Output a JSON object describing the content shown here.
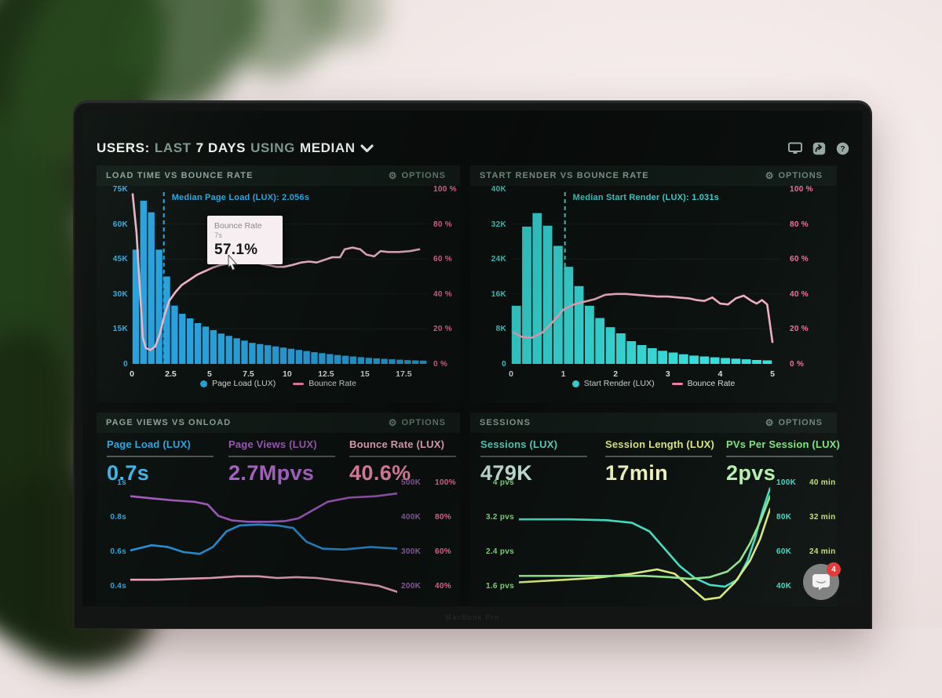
{
  "labels": {
    "options": "OPTIONS"
  },
  "header": {
    "parts": [
      {
        "text": "USERS:"
      },
      {
        "text": "LAST"
      },
      {
        "text": "7 DAYS"
      },
      {
        "text": "USING"
      },
      {
        "text": "MEDIAN"
      }
    ],
    "icons": [
      "display-icon",
      "share-icon",
      "help-icon"
    ]
  },
  "tooltip": {
    "metric": "Bounce Rate",
    "x": "7s",
    "value": "57.1%"
  },
  "chat": {
    "badge": "4"
  },
  "bezel": {
    "text": "MacBook Pro"
  },
  "chart_data": [
    {
      "id": "load-time-vs-bounce",
      "type": "bar+line",
      "title": "LOAD TIME VS BOUNCE RATE",
      "xlabel_unit": "seconds",
      "x_ticks": [
        0,
        2.5,
        5,
        7.5,
        10,
        12.5,
        15,
        17.5
      ],
      "x_max": 19.1,
      "bar_step": 0.5,
      "bar_color": "#28a2dc",
      "left_axis": {
        "labels": [
          "75K",
          "60K",
          "45K",
          "30K",
          "15K",
          "0"
        ],
        "max": 75,
        "color": "#3aabdf"
      },
      "right_axis": {
        "labels": [
          "100 %",
          "80 %",
          "60 %",
          "40 %",
          "20 %",
          "0 %"
        ],
        "max": 100,
        "color": "#f2719a"
      },
      "bars": [
        49,
        70,
        65,
        49,
        37.5,
        25,
        21.5,
        19.5,
        17.5,
        16,
        14.5,
        13,
        12,
        11,
        10,
        9,
        8.5,
        8,
        7.5,
        7,
        6.5,
        6,
        5.5,
        5,
        4.6,
        4.2,
        3.8,
        3.5,
        3.2,
        2.9,
        2.6,
        2.4,
        2.2,
        2,
        1.8,
        1.6,
        1.5,
        1.4
      ],
      "bars_unit": "K",
      "line": {
        "name": "Bounce Rate",
        "color": "#eeb4c4",
        "points": [
          [
            0.05,
            97
          ],
          [
            0.3,
            75
          ],
          [
            0.5,
            45
          ],
          [
            0.7,
            15
          ],
          [
            0.9,
            9
          ],
          [
            1.2,
            8
          ],
          [
            1.5,
            10
          ],
          [
            1.8,
            17
          ],
          [
            2.1,
            28
          ],
          [
            2.4,
            36
          ],
          [
            2.8,
            41
          ],
          [
            3.2,
            45
          ],
          [
            3.7,
            48
          ],
          [
            4.2,
            51
          ],
          [
            4.7,
            53
          ],
          [
            5.2,
            55
          ],
          [
            5.7,
            56.5
          ],
          [
            6.3,
            57.5
          ],
          [
            7,
            58
          ],
          [
            7.6,
            58
          ],
          [
            8.2,
            57.5
          ],
          [
            8.8,
            56.5
          ],
          [
            9.3,
            55.5
          ],
          [
            9.8,
            55.5
          ],
          [
            10.3,
            56.5
          ],
          [
            10.9,
            58
          ],
          [
            11.4,
            58.5
          ],
          [
            11.9,
            58
          ],
          [
            12.4,
            59.5
          ],
          [
            12.9,
            61
          ],
          [
            13.4,
            61
          ],
          [
            13.7,
            65.5
          ],
          [
            14.2,
            66.5
          ],
          [
            14.7,
            65.5
          ],
          [
            15.1,
            62.5
          ],
          [
            15.6,
            61.5
          ],
          [
            16,
            64.5
          ],
          [
            16.5,
            64
          ],
          [
            17.2,
            64
          ],
          [
            17.9,
            64.5
          ],
          [
            18.5,
            65.5
          ]
        ]
      },
      "annotation": {
        "text": "Median Page Load (LUX): 2.056s",
        "x": 2.056,
        "color": "#2fa6de"
      },
      "legend": [
        {
          "label": "Page Load (LUX)",
          "color": "#28a2dc",
          "marker": "dot"
        },
        {
          "label": "Bounce Rate",
          "color": "#f0809f",
          "marker": "line"
        }
      ]
    },
    {
      "id": "start-render-vs-bounce",
      "type": "bar+line",
      "title": "START RENDER VS BOUNCE RATE",
      "xlabel_unit": "seconds",
      "x_ticks": [
        0,
        1,
        2,
        3,
        4,
        5
      ],
      "x_max": 5.15,
      "bar_step": 0.2,
      "bar_color": "#38dedb",
      "left_axis": {
        "labels": [
          "40K",
          "32K",
          "24K",
          "16K",
          "8K",
          "0"
        ],
        "max": 40,
        "color": "#49ddd4"
      },
      "right_axis": {
        "labels": [
          "100 %",
          "80 %",
          "60 %",
          "40 %",
          "20 %",
          "0 %"
        ],
        "max": 100,
        "color": "#f2719a"
      },
      "bars": [
        13.3,
        31.4,
        34.5,
        31.6,
        27,
        22.2,
        17.8,
        13.3,
        10.5,
        8.4,
        7,
        5.2,
        4.3,
        3.6,
        3,
        2.6,
        2.2,
        1.9,
        1.7,
        1.5,
        1.35,
        1.2,
        1.05,
        0.9,
        0.8
      ],
      "bars_unit": "K",
      "line": {
        "name": "Bounce Rate",
        "color": "#f0aebf",
        "points": [
          [
            0.05,
            18
          ],
          [
            0.2,
            15.5
          ],
          [
            0.4,
            15
          ],
          [
            0.6,
            18
          ],
          [
            0.8,
            24
          ],
          [
            1,
            31
          ],
          [
            1.2,
            34
          ],
          [
            1.4,
            35.5
          ],
          [
            1.6,
            37
          ],
          [
            1.8,
            39.5
          ],
          [
            2,
            40
          ],
          [
            2.2,
            40
          ],
          [
            2.4,
            39.5
          ],
          [
            2.6,
            39
          ],
          [
            2.8,
            38.5
          ],
          [
            3,
            38.5
          ],
          [
            3.2,
            38
          ],
          [
            3.4,
            37.5
          ],
          [
            3.55,
            36.5
          ],
          [
            3.7,
            36
          ],
          [
            3.85,
            38
          ],
          [
            4,
            34.5
          ],
          [
            4.15,
            34
          ],
          [
            4.3,
            37.5
          ],
          [
            4.45,
            39
          ],
          [
            4.6,
            36
          ],
          [
            4.7,
            34.5
          ],
          [
            4.8,
            36.5
          ],
          [
            4.9,
            34
          ],
          [
            5,
            12.5
          ]
        ]
      },
      "annotation": {
        "text": "Median Start Render (LUX): 1.031s",
        "x": 1.031,
        "color": "#43d5d0"
      },
      "legend": [
        {
          "label": "Start Render (LUX)",
          "color": "#38dedb",
          "marker": "dot"
        },
        {
          "label": "Bounce Rate",
          "color": "#f0809f",
          "marker": "line"
        }
      ]
    },
    {
      "id": "page-views-vs-onload",
      "type": "multi-line",
      "title": "PAGE VIEWS VS ONLOAD",
      "metrics": [
        {
          "label": "Page Load (LUX)",
          "value": "0.7s",
          "label_color": "#2da9e1",
          "value_color": "#3fb7ea"
        },
        {
          "label": "Page Views (LUX)",
          "value": "2.7Mpvs",
          "label_color": "#a55fc0",
          "value_color": "#b46bd1"
        },
        {
          "label": "Bounce Rate (LUX)",
          "value": "40.6%",
          "label_color": "#f9b7cb",
          "value_color": "#fb90b6"
        }
      ],
      "left_axis": {
        "labels": [
          "1s",
          "0.8s",
          "0.6s",
          "0.4s"
        ],
        "color": "#2da9e1"
      },
      "right_axis": {
        "pairs": [
          [
            "500K",
            "100%"
          ],
          [
            "400K",
            "80%"
          ],
          [
            "300K",
            "60%"
          ],
          [
            "200K",
            "40%"
          ]
        ],
        "colors": [
          "#9c64b4",
          "#f2719a"
        ]
      },
      "series": [
        {
          "name": "Page Load",
          "color": "#2b93d8",
          "domain": [
            1,
            0.4
          ],
          "points": [
            [
              0,
              0.61
            ],
            [
              8,
              0.64
            ],
            [
              14,
              0.63
            ],
            [
              20,
              0.6
            ],
            [
              26,
              0.59
            ],
            [
              31,
              0.63
            ],
            [
              36,
              0.72
            ],
            [
              41,
              0.755
            ],
            [
              48,
              0.76
            ],
            [
              55,
              0.755
            ],
            [
              61,
              0.74
            ],
            [
              66,
              0.66
            ],
            [
              72,
              0.62
            ],
            [
              80,
              0.615
            ],
            [
              90,
              0.63
            ],
            [
              100,
              0.62
            ]
          ]
        },
        {
          "name": "Page Views",
          "color": "#a55ec2",
          "domain": [
            500,
            200
          ],
          "points": [
            [
              0,
              462
            ],
            [
              8,
              456
            ],
            [
              16,
              450
            ],
            [
              24,
              446
            ],
            [
              29,
              438
            ],
            [
              33,
              405
            ],
            [
              38,
              392
            ],
            [
              44,
              388
            ],
            [
              52,
              388
            ],
            [
              58,
              390
            ],
            [
              63,
              398
            ],
            [
              68,
              420
            ],
            [
              74,
              446
            ],
            [
              82,
              458
            ],
            [
              92,
              462
            ],
            [
              100,
              470
            ]
          ]
        },
        {
          "name": "Bounce Rate",
          "color": "#f0a9bd",
          "domain": [
            100,
            40
          ],
          "points": [
            [
              0,
              44
            ],
            [
              10,
              44
            ],
            [
              20,
              44.5
            ],
            [
              30,
              45
            ],
            [
              40,
              46
            ],
            [
              48,
              46
            ],
            [
              55,
              45
            ],
            [
              62,
              45.5
            ],
            [
              70,
              45
            ],
            [
              78,
              43.5
            ],
            [
              86,
              42
            ],
            [
              93,
              40.5
            ],
            [
              100,
              37
            ]
          ]
        }
      ]
    },
    {
      "id": "sessions",
      "type": "multi-line",
      "title": "SESSIONS",
      "metrics": [
        {
          "label": "Sessions (LUX)",
          "value": "479K",
          "label_color": "#5fd9c2",
          "value_color": "#cdeee2"
        },
        {
          "label": "Session Length (LUX)",
          "value": "17min",
          "label_color": "#d9e77d",
          "value_color": "#eff3c0"
        },
        {
          "label": "PVs Per Session (LUX)",
          "value": "2pvs",
          "label_color": "#7fe37f",
          "value_color": "#b5f0ae"
        }
      ],
      "left_axis": {
        "labels": [
          "4 pvs",
          "3.2 pvs",
          "2.4 pvs",
          "1.6 pvs"
        ],
        "color": "#7fe37f"
      },
      "right_axis": {
        "pairs": [
          [
            "100K",
            "40 min"
          ],
          [
            "80K",
            "32 min"
          ],
          [
            "60K",
            "24 min"
          ],
          [
            "40K",
            ""
          ]
        ],
        "colors": [
          "#43d9c0",
          "#c3de6f"
        ]
      },
      "series": [
        {
          "name": "Sessions",
          "color": "#45dcc0",
          "domain": [
            100,
            40
          ],
          "points": [
            [
              0,
              79
            ],
            [
              20,
              79
            ],
            [
              35,
              78.5
            ],
            [
              45,
              77
            ],
            [
              52,
              72
            ],
            [
              58,
              62
            ],
            [
              64,
              52
            ],
            [
              70,
              45
            ],
            [
              76,
              41
            ],
            [
              82,
              40
            ],
            [
              87,
              44
            ],
            [
              91,
              55
            ],
            [
              94,
              68
            ],
            [
              97,
              84
            ],
            [
              100,
              97
            ]
          ]
        },
        {
          "name": "Session Length",
          "color": "#d9e87f",
          "domain": [
            40,
            16
          ],
          "points": [
            [
              0,
              17
            ],
            [
              15,
              17.5
            ],
            [
              30,
              18
            ],
            [
              45,
              19
            ],
            [
              55,
              20
            ],
            [
              62,
              19
            ],
            [
              68,
              16
            ],
            [
              74,
              13
            ],
            [
              80,
              13.5
            ],
            [
              86,
              17
            ],
            [
              92,
              22
            ],
            [
              96,
              27
            ],
            [
              100,
              34
            ]
          ]
        },
        {
          "name": "PVs Per Session",
          "color": "#8fe38c",
          "domain": [
            4,
            1.6
          ],
          "points": [
            [
              0,
              1.85
            ],
            [
              25,
              1.85
            ],
            [
              50,
              1.85
            ],
            [
              60,
              1.82
            ],
            [
              68,
              1.78
            ],
            [
              76,
              1.82
            ],
            [
              83,
              1.95
            ],
            [
              88,
              2.2
            ],
            [
              92,
              2.6
            ],
            [
              96,
              3.1
            ],
            [
              100,
              3.7
            ]
          ]
        }
      ]
    }
  ]
}
